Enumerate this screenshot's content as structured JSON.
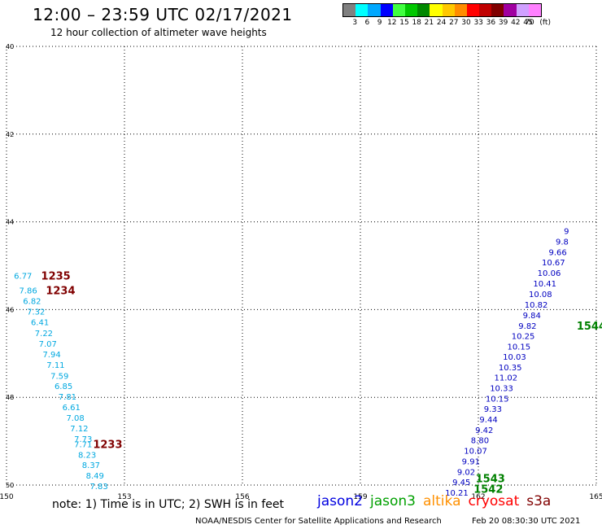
{
  "header": {
    "title": "12:00 – 23:59 UTC 02/17/2021",
    "subtitle": "12 hour collection of altimeter wave heights"
  },
  "legend": {
    "unit": "(ft)",
    "bins": [
      {
        "label": "3",
        "color": "#808080"
      },
      {
        "label": "6",
        "color": "#00ffff"
      },
      {
        "label": "9",
        "color": "#00a8ff"
      },
      {
        "label": "12",
        "color": "#0000ff"
      },
      {
        "label": "15",
        "color": "#40ff40"
      },
      {
        "label": "18",
        "color": "#00c800"
      },
      {
        "label": "21",
        "color": "#008800"
      },
      {
        "label": "24",
        "color": "#ffff00"
      },
      {
        "label": "27",
        "color": "#ffc800"
      },
      {
        "label": "30",
        "color": "#ff8c00"
      },
      {
        "label": "33",
        "color": "#ff0000"
      },
      {
        "label": "36",
        "color": "#c00000"
      },
      {
        "label": "39",
        "color": "#800000"
      },
      {
        "label": "42",
        "color": "#a000a0"
      },
      {
        "label": "45",
        "color": "#d0a0ff"
      },
      {
        "label": "70",
        "color": "#ff80ff"
      }
    ]
  },
  "map": {
    "lon_range": [
      150,
      165
    ],
    "lat_range": [
      -40,
      -50
    ],
    "lon_ticks": [
      "150",
      "153",
      "156",
      "159",
      "162",
      "165"
    ],
    "lat_ticks": [
      "40",
      "42",
      "44",
      "46",
      "48",
      "50"
    ],
    "colors": {
      "cyan_track": "#00a8e0",
      "blue_track": "#0000c0",
      "time_darkred": "#800000",
      "time_green": "#008000"
    },
    "tracks": [
      {
        "color": "cyan_track",
        "points": [
          {
            "lon": 150.42,
            "lat": -45.22,
            "text": "6.77"
          },
          {
            "lon": 150.55,
            "lat": -45.56,
            "text": "7.86"
          },
          {
            "lon": 150.65,
            "lat": -45.8,
            "text": "6.82"
          },
          {
            "lon": 150.75,
            "lat": -46.04,
            "text": "7.32"
          },
          {
            "lon": 150.85,
            "lat": -46.28,
            "text": "6.41"
          },
          {
            "lon": 150.95,
            "lat": -46.53,
            "text": "7.22"
          },
          {
            "lon": 151.05,
            "lat": -46.77,
            "text": "7.07"
          },
          {
            "lon": 151.15,
            "lat": -47.01,
            "text": "7.94"
          },
          {
            "lon": 151.25,
            "lat": -47.25,
            "text": "7.11"
          },
          {
            "lon": 151.35,
            "lat": -47.5,
            "text": "7.59"
          },
          {
            "lon": 151.45,
            "lat": -47.74,
            "text": "6.85"
          },
          {
            "lon": 151.55,
            "lat": -47.98,
            "text": "7.81"
          },
          {
            "lon": 151.65,
            "lat": -48.22,
            "text": "6.61"
          },
          {
            "lon": 151.75,
            "lat": -48.46,
            "text": "7.08"
          },
          {
            "lon": 151.85,
            "lat": -48.7,
            "text": "7.12"
          },
          {
            "lon": 151.95,
            "lat": -48.94,
            "text": "7.73"
          },
          {
            "lon": 151.95,
            "lat": -49.06,
            "text": "7.71"
          },
          {
            "lon": 152.05,
            "lat": -49.3,
            "text": "8.23"
          },
          {
            "lon": 152.15,
            "lat": -49.54,
            "text": "8.37"
          },
          {
            "lon": 152.25,
            "lat": -49.78,
            "text": "8.49"
          },
          {
            "lon": 152.35,
            "lat": -50.02,
            "text": "7.83"
          }
        ]
      },
      {
        "color": "blue_track",
        "points": [
          {
            "lon": 161.45,
            "lat": -50.17,
            "text": "10.21"
          },
          {
            "lon": 161.57,
            "lat": -49.93,
            "text": "9.45"
          },
          {
            "lon": 161.69,
            "lat": -49.69,
            "text": "9.02"
          },
          {
            "lon": 161.81,
            "lat": -49.45,
            "text": "9.91"
          },
          {
            "lon": 161.93,
            "lat": -49.21,
            "text": "10.07"
          },
          {
            "lon": 162.04,
            "lat": -48.97,
            "text": "8.80"
          },
          {
            "lon": 162.15,
            "lat": -48.74,
            "text": "9.42"
          },
          {
            "lon": 162.26,
            "lat": -48.5,
            "text": "9.44"
          },
          {
            "lon": 162.37,
            "lat": -48.26,
            "text": "9.33"
          },
          {
            "lon": 162.48,
            "lat": -48.02,
            "text": "10.15"
          },
          {
            "lon": 162.59,
            "lat": -47.78,
            "text": "10.33"
          },
          {
            "lon": 162.7,
            "lat": -47.54,
            "text": "11.02"
          },
          {
            "lon": 162.81,
            "lat": -47.31,
            "text": "10.35"
          },
          {
            "lon": 162.92,
            "lat": -47.07,
            "text": "10.03"
          },
          {
            "lon": 163.03,
            "lat": -46.84,
            "text": "10.15"
          },
          {
            "lon": 163.14,
            "lat": -46.6,
            "text": "10.25"
          },
          {
            "lon": 163.25,
            "lat": -46.36,
            "text": "9.82"
          },
          {
            "lon": 163.36,
            "lat": -46.12,
            "text": "9.84"
          },
          {
            "lon": 163.47,
            "lat": -45.88,
            "text": "10.82"
          },
          {
            "lon": 163.58,
            "lat": -45.64,
            "text": "10.08"
          },
          {
            "lon": 163.69,
            "lat": -45.4,
            "text": "10.41"
          },
          {
            "lon": 163.8,
            "lat": -45.16,
            "text": "10.06"
          },
          {
            "lon": 163.91,
            "lat": -44.92,
            "text": "10.67"
          },
          {
            "lon": 164.02,
            "lat": -44.68,
            "text": "9.66"
          },
          {
            "lon": 164.13,
            "lat": -44.44,
            "text": "9.8"
          },
          {
            "lon": 164.24,
            "lat": -44.2,
            "text": "9"
          }
        ]
      }
    ],
    "time_labels": [
      {
        "lon": 150.88,
        "lat": -45.22,
        "text": "1235",
        "color": "time_darkred"
      },
      {
        "lon": 151.0,
        "lat": -45.56,
        "text": "1234",
        "color": "time_darkred"
      },
      {
        "lon": 152.2,
        "lat": -49.06,
        "text": "1233",
        "color": "time_darkred"
      },
      {
        "lon": 164.5,
        "lat": -46.36,
        "text": "1544",
        "color": "time_green"
      },
      {
        "lon": 161.93,
        "lat": -49.84,
        "text": "1543",
        "color": "time_green"
      },
      {
        "lon": 161.88,
        "lat": -50.08,
        "text": "1542",
        "color": "time_green"
      }
    ]
  },
  "footer": {
    "note": "note: 1) Time is in UTC; 2) SWH is in feet",
    "missions": [
      {
        "name": "jason2",
        "color": "#0000e0"
      },
      {
        "name": "jason3",
        "color": "#00a000"
      },
      {
        "name": "altika",
        "color": "#ff9000"
      },
      {
        "name": "cryosat",
        "color": "#ff0000"
      },
      {
        "name": "s3a",
        "color": "#800000"
      }
    ],
    "credit": "NOAA/NESDIS Center for Satellite Applications and Research",
    "timestamp": "Feb 20 08:30:30 UTC 2021"
  }
}
